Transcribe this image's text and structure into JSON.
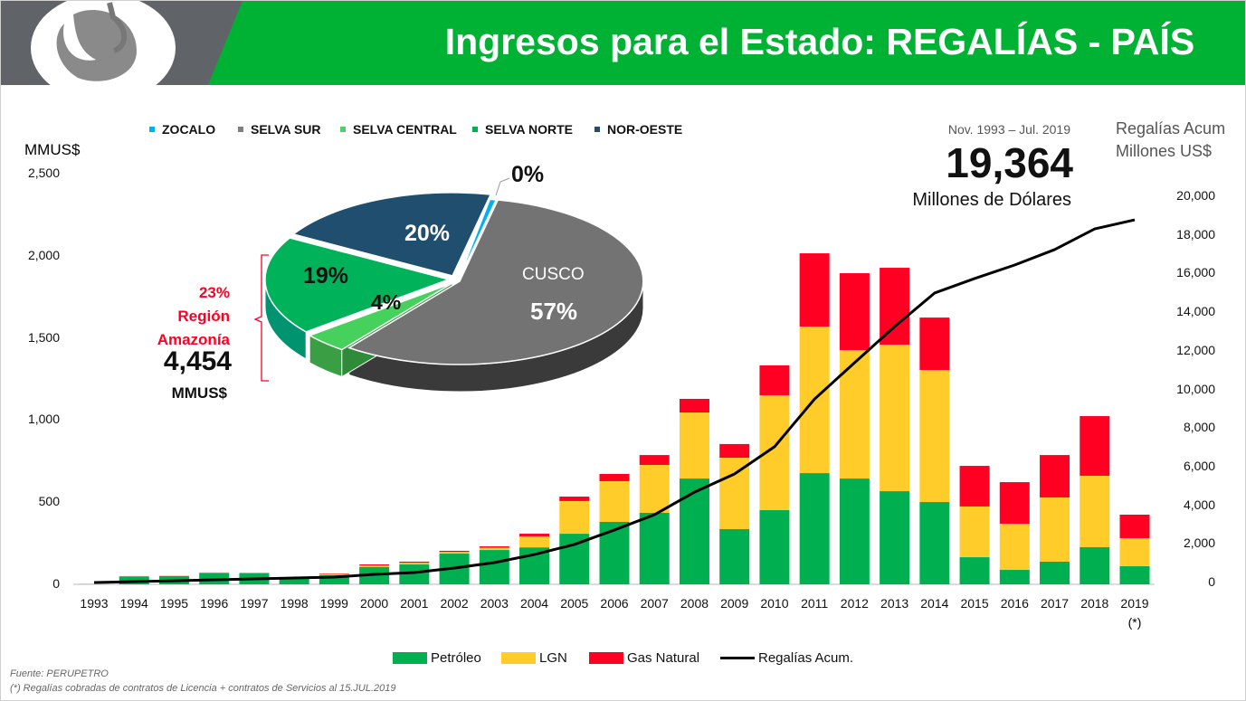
{
  "header": {
    "title": "Ingresos para el Estado: REGALÍAS - PAÍS",
    "gray": "#606469",
    "green": "#00b233"
  },
  "summary": {
    "period": "Nov. 1993 – Jul. 2019",
    "total": "19,364",
    "unit": "Millones de Dólares",
    "right_axis_title_1": "Regalías Acum",
    "right_axis_title_2": "Millones US$"
  },
  "amazonia": {
    "pct": "23%",
    "line1": "Región",
    "line2": "Amazonía",
    "value": "4,454",
    "unit": "MMUS$"
  },
  "pie": {
    "legend": [
      {
        "label": "ZOCALO",
        "color": "#00b0f0"
      },
      {
        "label": "SELVA SUR",
        "color": "#7f7f7f"
      },
      {
        "label": "SELVA CENTRAL",
        "color": "#4dd163"
      },
      {
        "label": "SELVA NORTE",
        "color": "#00b050"
      },
      {
        "label": "NOR-OESTE",
        "color": "#1f4e6e"
      }
    ],
    "cusco_label": "CUSCO",
    "labels": {
      "zocalo": "0%",
      "cusco": "57%",
      "selva_central": "4%",
      "selva_norte": "19%",
      "nor_oeste": "20%"
    }
  },
  "footer": {
    "source": "Fuente: PERUPETRO",
    "note": "(*) Regalías cobradas de contratos de Licencia + contratos de Servicios al 15.JUL.2019"
  },
  "chart_data": {
    "type": "bar",
    "stacked": true,
    "ylabel": "MMUS$",
    "ylim": [
      0,
      2500
    ],
    "yticks": [
      "2,500",
      "2,000",
      "1,500",
      "1,000",
      "500",
      "0"
    ],
    "y2lim": [
      0,
      20000
    ],
    "y2ticks": [
      "20,000",
      "18,000",
      "16,000",
      "14,000",
      "12,000",
      "10,000",
      "8,000",
      "6,000",
      "4,000",
      "2,000",
      "0"
    ],
    "categories": [
      "1993",
      "1994",
      "1995",
      "1996",
      "1997",
      "1998",
      "1999",
      "2000",
      "2001",
      "2002",
      "2003",
      "2004",
      "2005",
      "2006",
      "2007",
      "2008",
      "2009",
      "2010",
      "2011",
      "2012",
      "2013",
      "2014",
      "2015",
      "2016",
      "2017",
      "2018",
      "2019"
    ],
    "footnote_2019": "(*)",
    "series": [
      {
        "name": "Petróleo",
        "color": "#00b050",
        "values": [
          1,
          48,
          50,
          68,
          66,
          40,
          55,
          105,
          121,
          187,
          209,
          225,
          308,
          380,
          435,
          644,
          336,
          452,
          677,
          644,
          567,
          501,
          165,
          88,
          138,
          226,
          110
        ]
      },
      {
        "name": "LGN",
        "color": "#ffcc29",
        "values": [
          1,
          1,
          1,
          2,
          2,
          2,
          8,
          10,
          10,
          10,
          14,
          67,
          199,
          248,
          292,
          402,
          435,
          699,
          892,
          782,
          892,
          804,
          309,
          281,
          391,
          435,
          171
        ]
      },
      {
        "name": "Gas Natural",
        "color": "#ff0022",
        "values": [
          0,
          1,
          1,
          2,
          2,
          2,
          3,
          6,
          7,
          7,
          8,
          16,
          27,
          44,
          60,
          83,
          83,
          182,
          446,
          468,
          468,
          319,
          247,
          253,
          258,
          363,
          143
        ]
      },
      {
        "name": "Regalías Acum.",
        "color": "#000000",
        "axis": "right",
        "type": "line",
        "values": [
          0,
          45,
          90,
          140,
          190,
          235,
          280,
          420,
          515,
          750,
          1030,
          1450,
          1970,
          2720,
          3510,
          4680,
          5620,
          7030,
          9500,
          11380,
          13250,
          14990,
          15740,
          16440,
          17240,
          18310,
          18780
        ]
      }
    ]
  }
}
